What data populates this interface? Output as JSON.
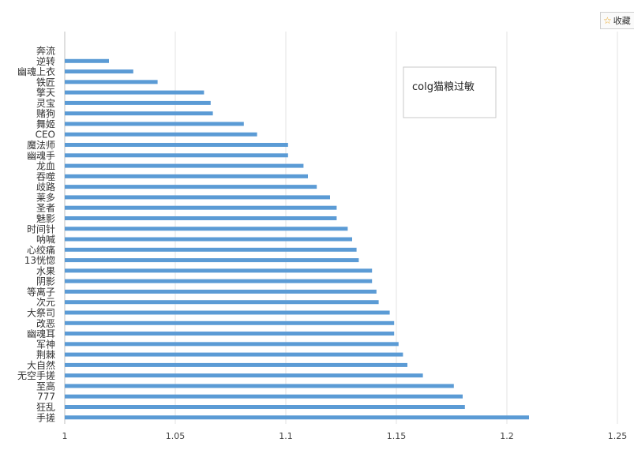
{
  "toolbar": {
    "favorite_label": "收藏",
    "favorite_icon": "star-icon"
  },
  "chart_data": {
    "type": "bar",
    "orientation": "horizontal",
    "annotation": "colg猫粮过敏",
    "categories": [
      "奔流",
      "逆转",
      "幽魂上衣",
      "铁匠",
      "擎天",
      "灵宝",
      "赌狗",
      "舞姬",
      "CEO",
      "魔法师",
      "幽魂手",
      "龙血",
      "吞噬",
      "歧路",
      "莱多",
      "圣者",
      "魅影",
      "时间针",
      "呐喊",
      "心绞痛",
      "13恍惚",
      "水果",
      "阴影",
      "等离子",
      "次元",
      "大祭司",
      "改恶",
      "幽魂耳",
      "军神",
      "荆棘",
      "大自然",
      "无空手搓",
      "至高",
      "777",
      "狂乱",
      "手搓"
    ],
    "values": [
      null,
      1.02,
      1.031,
      1.042,
      1.063,
      1.066,
      1.067,
      1.081,
      1.087,
      1.101,
      1.101,
      1.108,
      1.11,
      1.114,
      1.12,
      1.123,
      1.123,
      1.128,
      1.13,
      1.132,
      1.133,
      1.139,
      1.139,
      1.141,
      1.142,
      1.147,
      1.149,
      1.149,
      1.151,
      1.153,
      1.155,
      1.162,
      1.176,
      1.18,
      1.181,
      1.21
    ],
    "x_ticks": [
      "1",
      "1.05",
      "1.1",
      "1.15",
      "1.2",
      "1.25"
    ],
    "xlim": [
      1,
      1.25
    ],
    "grid": true,
    "bar_color": "#5b9bd5"
  }
}
